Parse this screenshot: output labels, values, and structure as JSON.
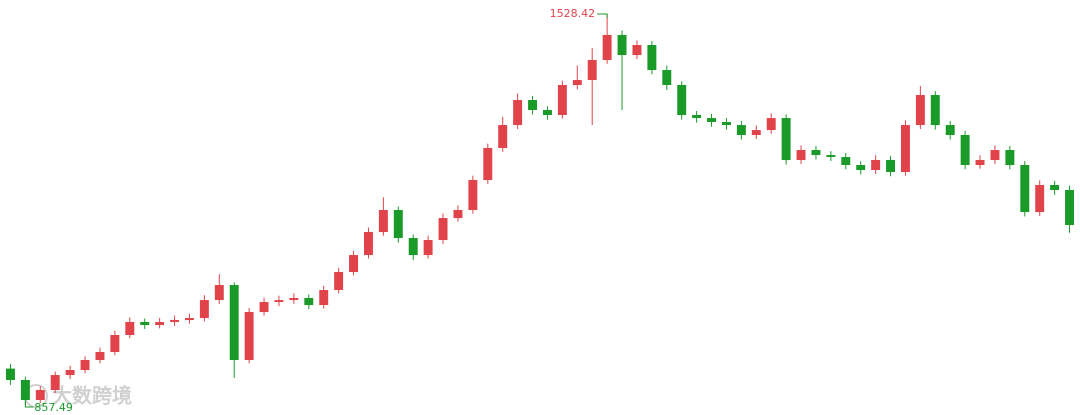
{
  "chart_data": {
    "type": "candlestick",
    "up_color": "#e0434a",
    "down_color": "#1a9a28",
    "open": [
      920.0,
      900.4,
      866.0,
      883.2,
      908.9,
      917.5,
      934.7,
      948.4,
      977.6,
      999.9,
      994.7,
      999.9,
      1003.3,
      1006.7,
      1037.6,
      1063.4,
      934.7,
      1017.0,
      1034.2,
      1037.6,
      1041.1,
      1029.0,
      1054.8,
      1085.7,
      1114.8,
      1154.3,
      1192.1,
      1144.0,
      1114.8,
      1140.6,
      1178.3,
      1192.1,
      1243.5,
      1298.5,
      1337.9,
      1380.8,
      1363.7,
      1355.1,
      1406.6,
      1415.1,
      1449.5,
      1492.4,
      1458.0,
      1475.2,
      1432.3,
      1406.6,
      1355.1,
      1349.9,
      1343.1,
      1337.9,
      1320.8,
      1329.3,
      1349.9,
      1277.9,
      1295.0,
      1286.4,
      1283.0,
      1269.3,
      1260.7,
      1277.9,
      1257.3,
      1337.9,
      1389.4,
      1337.9,
      1320.8,
      1269.3,
      1277.9,
      1295.0,
      1269.3,
      1188.6,
      1235.0,
      1226.4
    ],
    "high": [
      928,
      906,
      890,
      915,
      925,
      941,
      956,
      985,
      1008,
      1006,
      1007,
      1011,
      1014,
      1046,
      1082,
      1068,
      1024,
      1042,
      1045,
      1049,
      1047,
      1062,
      1093,
      1122,
      1162,
      1214,
      1198,
      1150,
      1148,
      1186,
      1200,
      1251,
      1306,
      1352,
      1392,
      1388,
      1370,
      1414,
      1440,
      1470,
      1528.42,
      1500,
      1483,
      1482,
      1440,
      1413,
      1362,
      1357,
      1350,
      1345,
      1337,
      1358,
      1356,
      1303,
      1302,
      1293,
      1290,
      1276,
      1286,
      1285,
      1346,
      1405,
      1396,
      1345,
      1328,
      1286,
      1303,
      1302,
      1276,
      1243,
      1242,
      1234
    ],
    "low": [
      892,
      857.49,
      861,
      878,
      902,
      912,
      929,
      943,
      972,
      988,
      989,
      993,
      997,
      1001,
      1031,
      903.8,
      929,
      1011,
      1027,
      1031,
      1022,
      1023,
      1049,
      1080,
      1109,
      1148,
      1136,
      1106,
      1109,
      1134,
      1172,
      1186,
      1237,
      1292,
      1331,
      1356,
      1347,
      1349,
      1399,
      1337.9,
      1443,
      1363.7,
      1451,
      1425,
      1398,
      1347,
      1342,
      1335,
      1330,
      1313,
      1314,
      1323,
      1270,
      1271,
      1279,
      1276,
      1262,
      1253,
      1254,
      1250,
      1251,
      1331,
      1330,
      1313,
      1262,
      1263,
      1271,
      1262,
      1181,
      1182,
      1218,
      1153
    ],
    "close": [
      900.4,
      866.0,
      883.2,
      908.9,
      917.5,
      934.7,
      948.4,
      977.6,
      999.9,
      994.7,
      999.9,
      1003.3,
      1006.7,
      1037.6,
      1063.4,
      934.7,
      1017.0,
      1034.2,
      1037.6,
      1041.1,
      1029.0,
      1054.8,
      1085.7,
      1114.8,
      1154.3,
      1192.1,
      1144.0,
      1114.8,
      1140.6,
      1178.3,
      1192.1,
      1243.5,
      1298.5,
      1337.9,
      1380.8,
      1363.7,
      1355.1,
      1406.6,
      1415.1,
      1449.5,
      1492.4,
      1458.0,
      1475.2,
      1432.3,
      1406.6,
      1355.1,
      1349.9,
      1343.1,
      1337.9,
      1320.8,
      1329.3,
      1349.9,
      1277.9,
      1295.0,
      1286.4,
      1283.0,
      1269.3,
      1260.7,
      1277.9,
      1257.3,
      1337.9,
      1389.4,
      1337.9,
      1320.8,
      1269.3,
      1277.9,
      1295.0,
      1269.3,
      1188.6,
      1235.0,
      1226.4,
      1166.3
    ],
    "max_annotation": 1528.42,
    "min_annotation": 857.49,
    "watermark": "大数跨境"
  }
}
